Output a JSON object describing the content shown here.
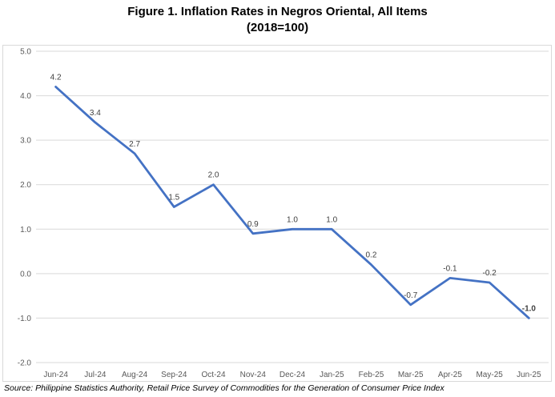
{
  "title_line1": "Figure 1. Inflation Rates in Negros Oriental, All Items",
  "title_line2": "(2018=100)",
  "source": "Source: Philippine Statistics Authority, Retail Price Survey of Commodities for the Generation of Consumer Price Index",
  "line_color": "#4472c4",
  "chart_data": {
    "type": "line",
    "title": "Figure 1. Inflation Rates in Negros Oriental, All Items (2018=100)",
    "xlabel": "",
    "ylabel": "",
    "categories": [
      "Jun-24",
      "Jul-24",
      "Aug-24",
      "Sep-24",
      "Oct-24",
      "Nov-24",
      "Dec-24",
      "Jan-25",
      "Feb-25",
      "Mar-25",
      "Apr-25",
      "May-25",
      "Jun-25"
    ],
    "values": [
      4.2,
      3.4,
      2.7,
      1.5,
      2.0,
      0.9,
      1.0,
      1.0,
      0.2,
      -0.7,
      -0.1,
      -0.2,
      -1.0
    ],
    "data_labels": [
      "4.2",
      "3.4",
      "2.7",
      "1.5",
      "2.0",
      "0.9",
      "1.0",
      "1.0",
      "0.2",
      "-0.7",
      "-0.1",
      "-0.2",
      "-1.0"
    ],
    "ylim": [
      -2.0,
      5.0
    ],
    "yticks": [
      5.0,
      4.0,
      3.0,
      2.0,
      1.0,
      0.0,
      -1.0,
      -2.0
    ],
    "ytick_labels": [
      "5.0",
      "4.0",
      "3.0",
      "2.0",
      "1.0",
      "0.0",
      "-1.0",
      "-2.0"
    ],
    "grid": true,
    "legend": "none"
  }
}
